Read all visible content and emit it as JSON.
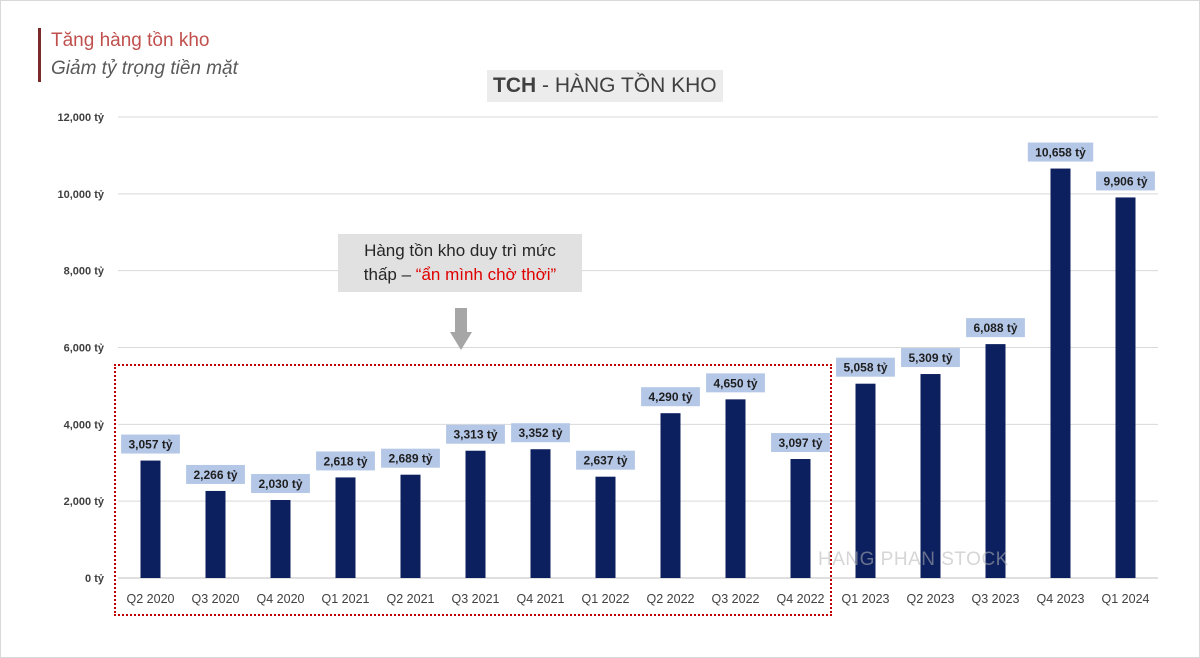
{
  "header": {
    "title": "Tăng hàng tồn kho",
    "subtitle": "Giảm tỷ trọng tiền mặt"
  },
  "annotation": {
    "line1": "Hàng tồn kho duy trì mức",
    "line2_prefix": "thấp – ",
    "line2_highlight": "“ẩn mình chờ thời”",
    "arrow_icon": "down-arrow-icon"
  },
  "watermark": "HANG PHAN STOCK",
  "colors": {
    "bar": "#0c1f5e",
    "label_bg": "#b4c7e7",
    "highlight": "#e00000",
    "box": "#c00000"
  },
  "chart_data": {
    "type": "bar",
    "title_bold": "TCH",
    "title_rest": " - HÀNG TỒN KHO",
    "xlabel": "",
    "ylabel": "",
    "ylim": [
      0,
      12000
    ],
    "yticks": [
      0,
      2000,
      4000,
      6000,
      8000,
      10000,
      12000
    ],
    "ytick_labels": [
      "0 tỷ",
      "2,000 tỷ",
      "4,000 tỷ",
      "6,000 tỷ",
      "8,000 tỷ",
      "10,000 tỷ",
      "12,000 tỷ"
    ],
    "grid": true,
    "legend": "none",
    "categories": [
      "Q2 2020",
      "Q3 2020",
      "Q4 2020",
      "Q1 2021",
      "Q2 2021",
      "Q3 2021",
      "Q4 2021",
      "Q1 2022",
      "Q2 2022",
      "Q3 2022",
      "Q4 2022",
      "Q1 2023",
      "Q2 2023",
      "Q3 2023",
      "Q4 2023",
      "Q1 2024"
    ],
    "values": [
      3057,
      2266,
      2030,
      2618,
      2689,
      3313,
      3352,
      2637,
      4290,
      4650,
      3097,
      5058,
      5309,
      6088,
      10658,
      9906
    ],
    "data_labels": [
      "3,057 tỷ",
      "2,266 tỷ",
      "2,030 tỷ",
      "2,618 tỷ",
      "2,689 tỷ",
      "3,313 tỷ",
      "3,352 tỷ",
      "2,637 tỷ",
      "4,290 tỷ",
      "4,650 tỷ",
      "3,097 tỷ",
      "5,058 tỷ",
      "5,309 tỷ",
      "6,088 tỷ",
      "10,658 tỷ",
      "9,906 tỷ"
    ]
  }
}
